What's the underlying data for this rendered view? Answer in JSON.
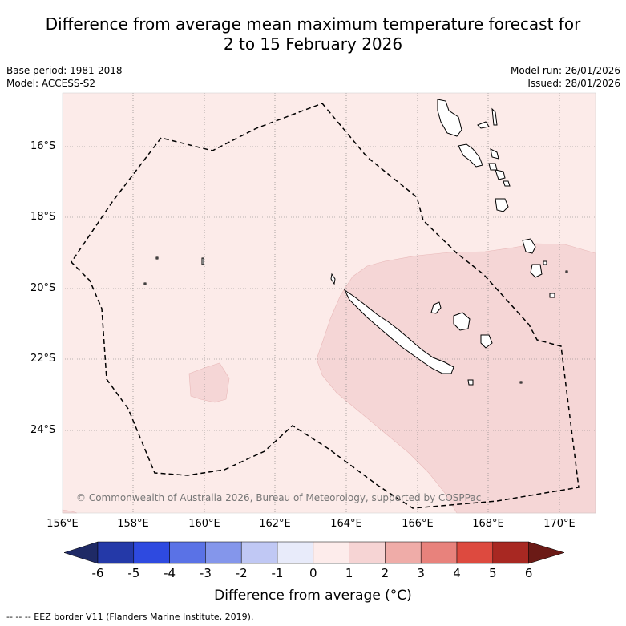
{
  "title": {
    "line1": "Difference from average mean maximum temperature forecast for",
    "line2": "2 to 15 February 2026"
  },
  "meta": {
    "base_period": "Base period: 1981-2018",
    "model": "Model: ACCESS-S2",
    "model_run": "Model run: 26/01/2026",
    "issued": "Issued: 28/01/2026"
  },
  "map": {
    "lat_labels": [
      "16°S",
      "18°S",
      "20°S",
      "22°S",
      "24°S"
    ],
    "lon_labels": [
      "156°E",
      "158°E",
      "160°E",
      "162°E",
      "164°E",
      "166°E",
      "168°E",
      "170°E"
    ],
    "copyright": "© Commonwealth of Australia 2026, Bureau of Meteorology, supported by COSPPac",
    "background_color": "#fcebe9",
    "anomaly_color": "#f5d6d6"
  },
  "colorbar": {
    "labels": [
      "-6",
      "-5",
      "-4",
      "-3",
      "-2",
      "-1",
      "0",
      "1",
      "2",
      "3",
      "4",
      "5",
      "6"
    ],
    "colors": [
      "#1f2a66",
      "#2439a8",
      "#2e4ae0",
      "#5a72e6",
      "#8496eb",
      "#c0c8f4",
      "#e8ebfa",
      "#fdeceb",
      "#f6d4d4",
      "#efaca8",
      "#e8827c",
      "#dd4a3f",
      "#a82822",
      "#6b1a16"
    ],
    "title": "Difference from average (°C)"
  },
  "footnote": "--  --  -- EEZ border V11 (Flanders Marine Institute, 2019)."
}
